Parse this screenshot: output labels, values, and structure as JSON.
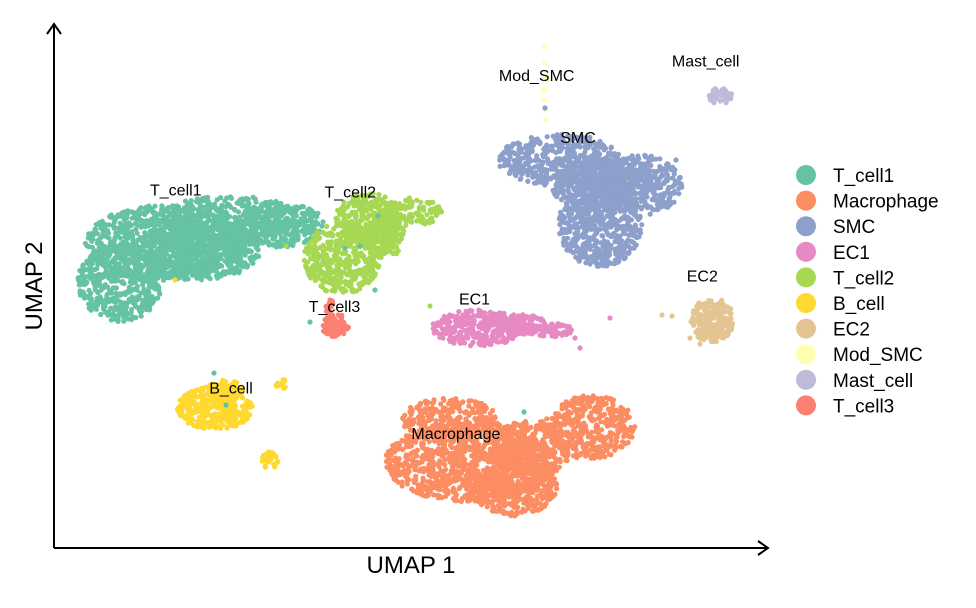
{
  "chart_data": {
    "type": "scatter",
    "title": "",
    "xlabel": "UMAP 1",
    "ylabel": "UMAP 2",
    "xlim": [
      0,
      100
    ],
    "ylim": [
      0,
      100
    ],
    "grid": false,
    "legend_position": "right",
    "clusters": [
      {
        "name": "T_cell1",
        "color": "#66C2A5",
        "label_x": 16.2,
        "label_y": 68.6
      },
      {
        "name": "Macrophage",
        "color": "#FC8D62",
        "label_x": 56.8,
        "label_y": 20.7
      },
      {
        "name": "SMC",
        "color": "#8DA0CB",
        "label_x": 74.5,
        "label_y": 78.9
      },
      {
        "name": "EC1",
        "color": "#E78AC3",
        "label_x": 59.5,
        "label_y": 47.1
      },
      {
        "name": "T_cell2",
        "color": "#A6D854",
        "label_x": 41.5,
        "label_y": 68.2
      },
      {
        "name": "B_cell",
        "color": "#FFD92F",
        "label_x": 24.2,
        "label_y": 29.6
      },
      {
        "name": "EC2",
        "color": "#E5C494",
        "label_x": 92.5,
        "label_y": 51.7
      },
      {
        "name": "Mod_SMC",
        "color": "#FFFFB3",
        "label_x": 68.5,
        "label_y": 91.1
      },
      {
        "name": "Mast_cell",
        "color": "#BEBADA",
        "label_x": 93.0,
        "label_y": 94.0
      },
      {
        "name": "T_cell3",
        "color": "#FB8072",
        "label_x": 39.2,
        "label_y": 45.7
      }
    ],
    "legend": [
      "T_cell1",
      "Macrophage",
      "SMC",
      "EC1",
      "T_cell2",
      "B_cell",
      "EC2",
      "Mod_SMC",
      "Mast_cell",
      "T_cell3"
    ]
  }
}
